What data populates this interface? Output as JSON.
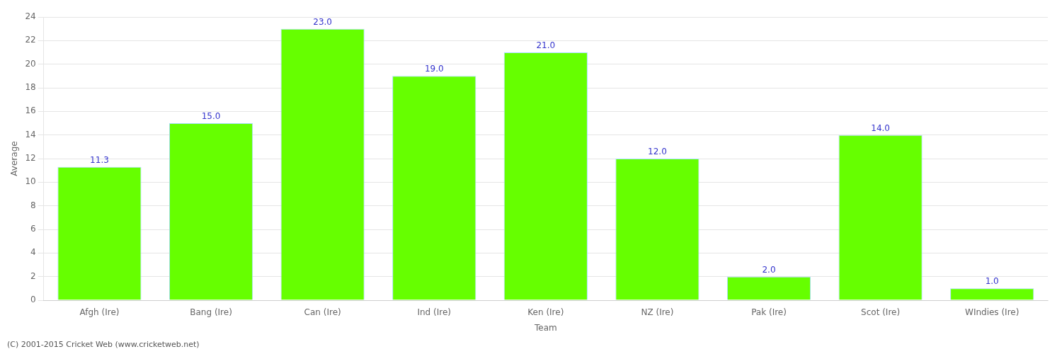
{
  "chart_data": {
    "type": "bar",
    "categories": [
      "Afgh (Ire)",
      "Bang (Ire)",
      "Can (Ire)",
      "Ind (Ire)",
      "Ken (Ire)",
      "NZ (Ire)",
      "Pak (Ire)",
      "Scot (Ire)",
      "WIndies (Ire)"
    ],
    "values": [
      11.3,
      15.0,
      23.0,
      19.0,
      21.0,
      12.0,
      2.0,
      14.0,
      1.0
    ],
    "value_labels": [
      "11.3",
      "15.0",
      "23.0",
      "19.0",
      "21.0",
      "12.0",
      "2.0",
      "14.0",
      "1.0"
    ],
    "data_labels": true,
    "color": "#66FF00",
    "xlabel": "Team",
    "ylabel": "Average",
    "ylim": [
      0,
      24
    ],
    "yticks": [
      0,
      2,
      4,
      6,
      8,
      10,
      12,
      14,
      16,
      18,
      20,
      22,
      24
    ],
    "grid": true,
    "annotations": [
      "(C) 2001-2015 Cricket Web (www.cricketweb.net)"
    ]
  }
}
